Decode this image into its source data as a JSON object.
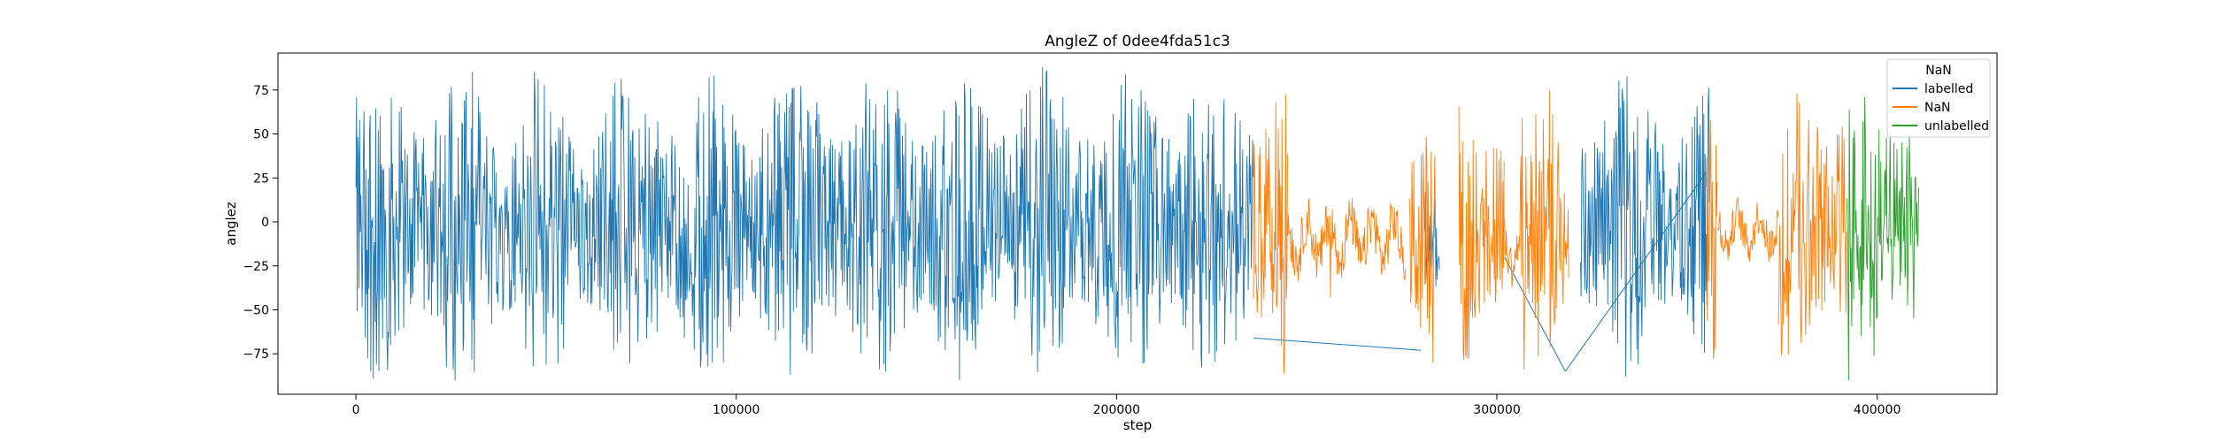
{
  "chart_data": {
    "type": "line",
    "title": "AngleZ of 0dee4fda51c3",
    "xlabel": "step",
    "ylabel": "anglez",
    "xlim": [
      -20500,
      431500
    ],
    "ylim": [
      -98,
      96
    ],
    "xticks": [
      0,
      100000,
      200000,
      300000,
      400000
    ],
    "xtick_labels": [
      "0",
      "100000",
      "200000",
      "300000",
      "400000"
    ],
    "yticks": [
      -75,
      -50,
      -25,
      0,
      25,
      50,
      75
    ],
    "ytick_labels": [
      "−75",
      "−50",
      "−25",
      "0",
      "25",
      "50",
      "75"
    ],
    "grid": false,
    "legend": {
      "title": "NaN",
      "placement": "top-right",
      "entries": [
        "labelled",
        "NaN",
        "unlabelled"
      ]
    },
    "series": [
      {
        "name": "labelled",
        "color": "#1f77b4",
        "segments": [
          {
            "kind": "noise",
            "x": [
              0,
              236000
            ],
            "range": [
              -90,
              88
            ],
            "density": 0.85
          },
          {
            "kind": "noise",
            "x": [
              281000,
              285000
            ],
            "range": [
              -60,
              40
            ],
            "density": 0.6
          },
          {
            "kind": "noise",
            "x": [
              322000,
              356000
            ],
            "range": [
              -88,
              88
            ],
            "density": 0.85
          }
        ],
        "connectors": [
          {
            "x": [
              236000,
              280000
            ],
            "y": [
              -66,
              -73
            ]
          },
          {
            "x": [
              302000,
              318000
            ],
            "y": [
              -20,
              -85
            ]
          },
          {
            "x": [
              318000,
              355000
            ],
            "y": [
              -85,
              28
            ]
          }
        ]
      },
      {
        "name": "NaN",
        "color": "#ff7f0e",
        "segments": [
          {
            "kind": "noise",
            "x": [
              236000,
              245000
            ],
            "range": [
              -88,
              82
            ],
            "density": 0.7
          },
          {
            "kind": "calm",
            "x": [
              245000,
              276000
            ],
            "center": -10,
            "amp": 28
          },
          {
            "kind": "noise",
            "x": [
              277000,
              284000
            ],
            "range": [
              -90,
              78
            ],
            "density": 0.7
          },
          {
            "kind": "noise",
            "x": [
              290000,
              302000
            ],
            "range": [
              -88,
              80
            ],
            "density": 0.7
          },
          {
            "kind": "calm",
            "x": [
              302000,
              306000
            ],
            "center": -15,
            "amp": 25
          },
          {
            "kind": "noise",
            "x": [
              306000,
              319000
            ],
            "range": [
              -88,
              80
            ],
            "density": 0.7
          },
          {
            "kind": "noise",
            "x": [
              355000,
              358000
            ],
            "range": [
              -90,
              82
            ],
            "density": 0.6
          },
          {
            "kind": "calm",
            "x": [
              358000,
              374000
            ],
            "center": -5,
            "amp": 22
          },
          {
            "kind": "noise",
            "x": [
              374000,
              392000
            ],
            "range": [
              -90,
              88
            ],
            "density": 0.7
          }
        ],
        "connectors": []
      },
      {
        "name": "unlabelled",
        "color": "#2ca02c",
        "segments": [
          {
            "kind": "noise",
            "x": [
              392000,
              411000
            ],
            "range": [
              -90,
              85
            ],
            "density": 0.7
          }
        ],
        "connectors": []
      }
    ]
  }
}
